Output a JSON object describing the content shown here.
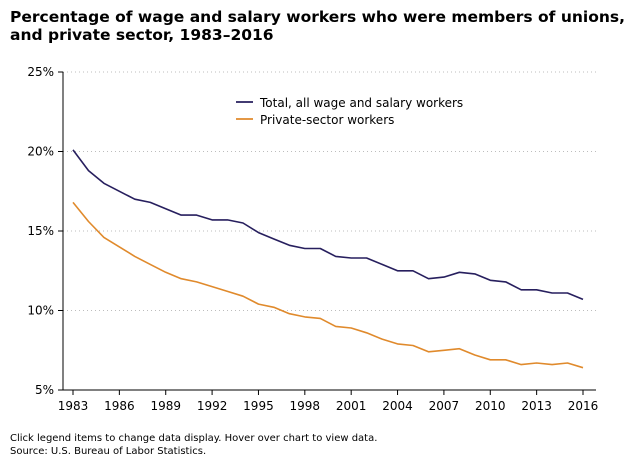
{
  "chart_data": {
    "type": "line",
    "title": "Percentage of wage and salary workers who were members of unions, total\nand private sector, 1983–2016",
    "xlabel": "",
    "ylabel": "",
    "x": [
      1983,
      1984,
      1985,
      1986,
      1987,
      1988,
      1989,
      1990,
      1991,
      1992,
      1993,
      1994,
      1995,
      1996,
      1997,
      1998,
      1999,
      2000,
      2001,
      2002,
      2003,
      2004,
      2005,
      2006,
      2007,
      2008,
      2009,
      2010,
      2011,
      2012,
      2013,
      2014,
      2015,
      2016
    ],
    "x_ticks": [
      "1983",
      "1986",
      "1989",
      "1992",
      "1995",
      "1998",
      "2001",
      "2004",
      "2007",
      "2010",
      "2013",
      "2016"
    ],
    "y_ticks": [
      "25%",
      "20%",
      "15%",
      "10%",
      "5%"
    ],
    "ylim": [
      5,
      25
    ],
    "grid": "horizontal dotted",
    "legend_position": "top-center",
    "series": [
      {
        "name": "Total, all wage and salary workers",
        "color": "#271F5E",
        "values": [
          20.1,
          18.8,
          18.0,
          17.5,
          17.0,
          16.8,
          16.4,
          16.0,
          16.0,
          15.7,
          15.7,
          15.5,
          14.9,
          14.5,
          14.1,
          13.9,
          13.9,
          13.4,
          13.3,
          13.3,
          12.9,
          12.5,
          12.5,
          12.0,
          12.1,
          12.4,
          12.3,
          11.9,
          11.8,
          11.3,
          11.3,
          11.1,
          11.1,
          10.7
        ]
      },
      {
        "name": "Private-sector workers",
        "color": "#E08A2C",
        "values": [
          16.8,
          15.6,
          14.6,
          14.0,
          13.4,
          12.9,
          12.4,
          12.0,
          11.8,
          11.5,
          11.2,
          10.9,
          10.4,
          10.2,
          9.8,
          9.6,
          9.5,
          9.0,
          8.9,
          8.6,
          8.2,
          7.9,
          7.8,
          7.4,
          7.5,
          7.6,
          7.2,
          6.9,
          6.9,
          6.6,
          6.7,
          6.6,
          6.7,
          6.4
        ]
      }
    ]
  },
  "footer": {
    "note": "Click legend items to change data display. Hover over chart to view data.",
    "source": "Source: U.S. Bureau of Labor Statistics."
  }
}
